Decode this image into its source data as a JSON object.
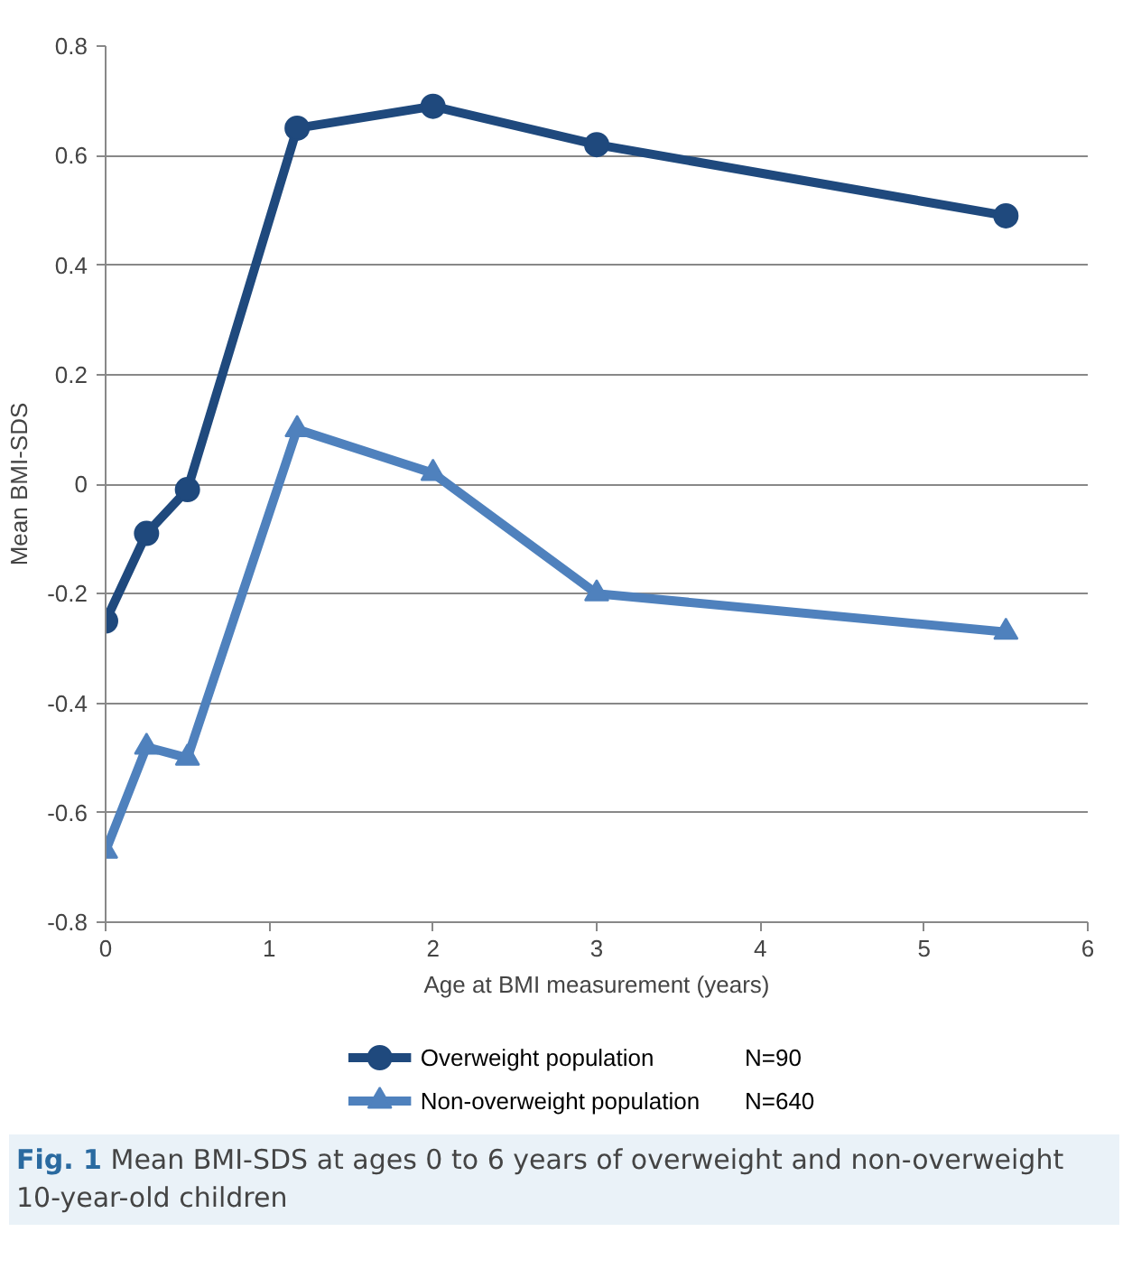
{
  "chart_data": {
    "type": "line",
    "x": [
      0,
      0.25,
      0.5,
      1.17,
      2,
      3,
      5.5
    ],
    "xlabel": "Age at BMI measurement (years)",
    "ylabel": "Mean BMI-SDS",
    "series": [
      {
        "name": "Overweight population",
        "color": "#1f497d",
        "marker": "circle",
        "values": [
          -0.25,
          -0.09,
          -0.01,
          0.65,
          0.69,
          0.62,
          0.49
        ]
      },
      {
        "name": "Non-overweight population",
        "color": "#4f81bd",
        "marker": "triangle",
        "values": [
          -0.67,
          -0.48,
          -0.5,
          0.1,
          0.02,
          -0.2,
          -0.27
        ]
      }
    ],
    "xlim": [
      0,
      6
    ],
    "xticks": [
      0,
      1,
      2,
      3,
      4,
      5,
      6
    ],
    "ylim": [
      -0.8,
      0.8
    ],
    "yticks": [
      -0.8,
      -0.6,
      -0.4,
      -0.2,
      0,
      0.2,
      0.4,
      0.6,
      0.8
    ],
    "grid": "y",
    "legend": "bottom",
    "line_style": "solid",
    "annotations": [
      "N=90",
      "N=640",
      "Fig. 1 Mean BMI-SDS at ages 0 to 6 years of overweight and non-overweight 10-year-old children"
    ]
  }
}
